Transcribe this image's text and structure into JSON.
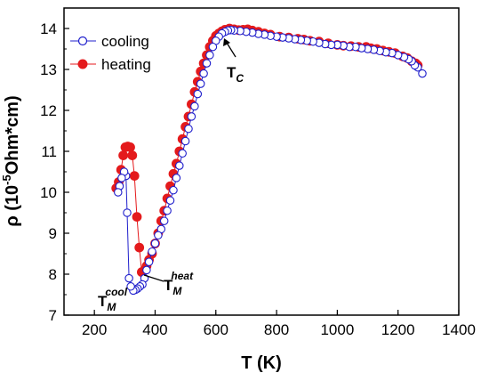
{
  "chart_data": {
    "type": "scatter",
    "xlabel": "T (K)",
    "ylabel_main": "ρ (10",
    "ylabel_sup": "-5",
    "ylabel_tail": "Ohm*cm)",
    "xlim": [
      100,
      1400
    ],
    "ylim": [
      7,
      14.5
    ],
    "xticks": [
      200,
      400,
      600,
      800,
      1000,
      1200,
      1400
    ],
    "yticks": [
      7,
      8,
      9,
      10,
      11,
      12,
      13,
      14
    ],
    "legend_position": "top-left",
    "series": [
      {
        "name": "cooling",
        "color": "#1f1fcc",
        "marker": "open-circle",
        "points": [
          [
            1280,
            12.9
          ],
          [
            1265,
            13.05
          ],
          [
            1255,
            13.1
          ],
          [
            1245,
            13.2
          ],
          [
            1235,
            13.25
          ],
          [
            1220,
            13.3
          ],
          [
            1200,
            13.35
          ],
          [
            1180,
            13.4
          ],
          [
            1160,
            13.42
          ],
          [
            1140,
            13.45
          ],
          [
            1120,
            13.48
          ],
          [
            1100,
            13.5
          ],
          [
            1080,
            13.52
          ],
          [
            1060,
            13.55
          ],
          [
            1040,
            13.55
          ],
          [
            1020,
            13.58
          ],
          [
            1000,
            13.6
          ],
          [
            980,
            13.6
          ],
          [
            960,
            13.62
          ],
          [
            940,
            13.65
          ],
          [
            920,
            13.68
          ],
          [
            900,
            13.7
          ],
          [
            880,
            13.72
          ],
          [
            860,
            13.74
          ],
          [
            840,
            13.76
          ],
          [
            820,
            13.78
          ],
          [
            800,
            13.8
          ],
          [
            780,
            13.82
          ],
          [
            760,
            13.85
          ],
          [
            740,
            13.87
          ],
          [
            720,
            13.9
          ],
          [
            700,
            13.92
          ],
          [
            680,
            13.94
          ],
          [
            660,
            13.95
          ],
          [
            650,
            13.96
          ],
          [
            640,
            13.95
          ],
          [
            630,
            13.92
          ],
          [
            620,
            13.88
          ],
          [
            610,
            13.8
          ],
          [
            600,
            13.7
          ],
          [
            590,
            13.55
          ],
          [
            580,
            13.35
          ],
          [
            570,
            13.15
          ],
          [
            560,
            12.9
          ],
          [
            550,
            12.65
          ],
          [
            540,
            12.4
          ],
          [
            530,
            12.1
          ],
          [
            520,
            11.85
          ],
          [
            510,
            11.55
          ],
          [
            500,
            11.25
          ],
          [
            490,
            10.95
          ],
          [
            480,
            10.65
          ],
          [
            470,
            10.35
          ],
          [
            460,
            10.05
          ],
          [
            450,
            9.8
          ],
          [
            440,
            9.55
          ],
          [
            430,
            9.3
          ],
          [
            420,
            9.1
          ],
          [
            410,
            8.95
          ],
          [
            400,
            8.75
          ],
          [
            390,
            8.55
          ],
          [
            380,
            8.3
          ],
          [
            372,
            8.1
          ],
          [
            365,
            7.9
          ],
          [
            358,
            7.75
          ],
          [
            350,
            7.7
          ],
          [
            342,
            7.65
          ],
          [
            335,
            7.62
          ],
          [
            328,
            7.6
          ],
          [
            320,
            7.7
          ],
          [
            314,
            7.9
          ],
          [
            308,
            9.5
          ],
          [
            304,
            10.4
          ],
          [
            298,
            10.5
          ],
          [
            290,
            10.35
          ],
          [
            283,
            10.15
          ],
          [
            278,
            10.0
          ]
        ]
      },
      {
        "name": "heating",
        "color": "#e41a1c",
        "marker": "filled-circle",
        "points": [
          [
            272,
            10.1
          ],
          [
            280,
            10.25
          ],
          [
            288,
            10.55
          ],
          [
            295,
            10.9
          ],
          [
            302,
            11.1
          ],
          [
            310,
            11.12
          ],
          [
            318,
            11.1
          ],
          [
            325,
            10.9
          ],
          [
            332,
            10.4
          ],
          [
            340,
            9.4
          ],
          [
            348,
            8.65
          ],
          [
            356,
            8.05
          ],
          [
            365,
            8.1
          ],
          [
            372,
            8.2
          ],
          [
            380,
            8.35
          ],
          [
            390,
            8.5
          ],
          [
            400,
            8.75
          ],
          [
            410,
            9.0
          ],
          [
            420,
            9.3
          ],
          [
            430,
            9.55
          ],
          [
            440,
            9.85
          ],
          [
            450,
            10.15
          ],
          [
            460,
            10.45
          ],
          [
            470,
            10.7
          ],
          [
            480,
            11.0
          ],
          [
            490,
            11.3
          ],
          [
            500,
            11.6
          ],
          [
            510,
            11.85
          ],
          [
            520,
            12.15
          ],
          [
            530,
            12.45
          ],
          [
            540,
            12.7
          ],
          [
            550,
            12.95
          ],
          [
            560,
            13.15
          ],
          [
            570,
            13.35
          ],
          [
            580,
            13.55
          ],
          [
            590,
            13.7
          ],
          [
            600,
            13.82
          ],
          [
            610,
            13.88
          ],
          [
            620,
            13.93
          ],
          [
            630,
            13.97
          ],
          [
            645,
            14.0
          ],
          [
            660,
            13.98
          ],
          [
            675,
            13.96
          ],
          [
            690,
            13.97
          ],
          [
            705,
            13.98
          ],
          [
            720,
            13.95
          ],
          [
            740,
            13.92
          ],
          [
            760,
            13.88
          ],
          [
            780,
            13.85
          ],
          [
            810,
            13.8
          ],
          [
            840,
            13.78
          ],
          [
            870,
            13.75
          ],
          [
            890,
            13.73
          ],
          [
            910,
            13.7
          ],
          [
            940,
            13.68
          ],
          [
            970,
            13.64
          ],
          [
            1000,
            13.6
          ],
          [
            1020,
            13.58
          ],
          [
            1045,
            13.57
          ],
          [
            1070,
            13.55
          ],
          [
            1095,
            13.55
          ],
          [
            1110,
            13.52
          ],
          [
            1130,
            13.5
          ],
          [
            1150,
            13.46
          ],
          [
            1170,
            13.43
          ],
          [
            1190,
            13.4
          ],
          [
            1215,
            13.32
          ],
          [
            1230,
            13.28
          ],
          [
            1245,
            13.2
          ],
          [
            1258,
            13.15
          ],
          [
            1265,
            13.1
          ]
        ]
      }
    ],
    "annotations": [
      {
        "text": "T",
        "sub": "C",
        "target": [
          640,
          13.9
        ],
        "arrow": true
      },
      {
        "text": "T",
        "sub": "M",
        "sup": "heat",
        "target": [
          362,
          8.0
        ],
        "arrow": false
      },
      {
        "text": "T",
        "sub": "M",
        "sup": "cool",
        "target": [
          330,
          7.6
        ],
        "arrow": false
      }
    ]
  }
}
